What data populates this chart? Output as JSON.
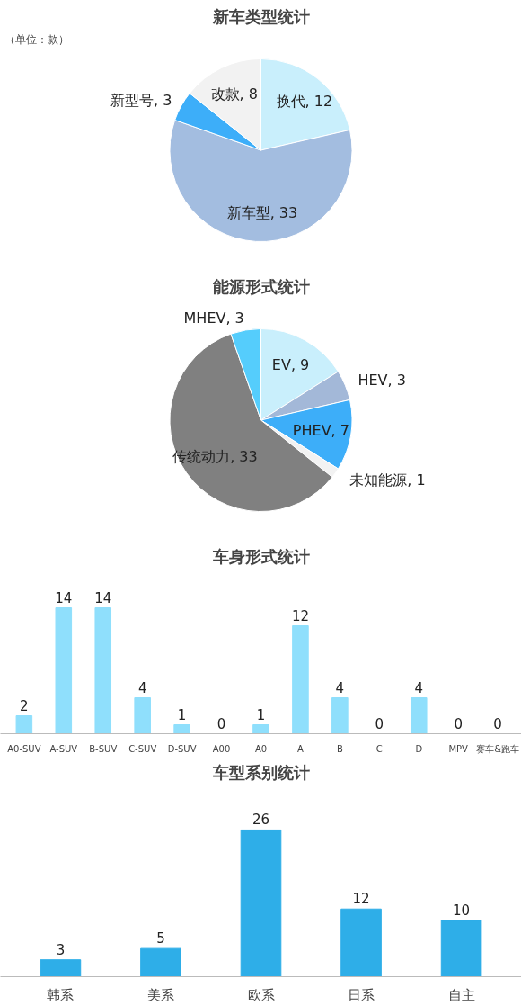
{
  "chart_data": [
    {
      "type": "pie",
      "title": "新车类型统计",
      "annotations": [
        "（单位：款）"
      ],
      "categories": [
        "换代",
        "新车型",
        "新型号",
        "改款"
      ],
      "values": [
        12,
        33,
        3,
        8
      ],
      "colors": [
        "#c9effc",
        "#a3bde0",
        "#3daef9",
        "#f2f2f2"
      ],
      "value_labels": [
        ", 12",
        ", 33",
        ", 3",
        ", 8"
      ]
    },
    {
      "type": "pie",
      "title": "能源形式统计",
      "categories": [
        "EV",
        "HEV",
        "PHEV",
        "未知能源",
        "传统动力",
        "MHEV"
      ],
      "values": [
        9,
        3,
        7,
        1,
        33,
        3
      ],
      "colors": [
        "#c9effc",
        "#a3b8d8",
        "#3daef9",
        "#f2f2f2",
        "#808080",
        "#55cdfc"
      ],
      "value_labels": [
        ", 9",
        ", 3",
        ", 7",
        ", 1",
        ", 33",
        ", 3"
      ]
    },
    {
      "type": "bar",
      "title": "车身形式统计",
      "categories": [
        "A0-SUV",
        "A-SUV",
        "B-SUV",
        "C-SUV",
        "D-SUV",
        "A00",
        "A0",
        "A",
        "B",
        "C",
        "D",
        "MPV",
        "赛车&跑车"
      ],
      "values": [
        2,
        14,
        14,
        4,
        1,
        0,
        1,
        12,
        4,
        0,
        4,
        0,
        0
      ],
      "color": "#8fdffc",
      "data_labels": true,
      "grid": false,
      "tick_labels": "x"
    },
    {
      "type": "bar",
      "title": "车型系别统计",
      "categories": [
        "韩系",
        "美系",
        "欧系",
        "日系",
        "自主"
      ],
      "values": [
        3,
        5,
        26,
        12,
        10
      ],
      "color": "#2eaee8",
      "data_labels": true,
      "grid": false,
      "tick_labels": "x"
    }
  ]
}
